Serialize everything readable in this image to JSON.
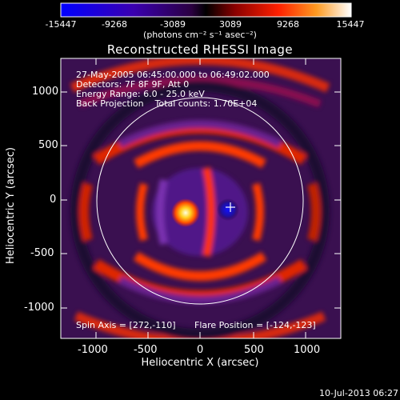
{
  "colorbar": {
    "ticks": [
      "-15447",
      "-9268",
      "-3089",
      "3089",
      "9268",
      "15447"
    ],
    "units_line": "(photons cm⁻² s⁻¹ asec⁻²)"
  },
  "title": "Reconstructed RHESSI Image",
  "info": {
    "line1": "27-May-2005 06:45:00.000 to 06:49:02.000",
    "line2": "Detectors: 7F 8F 9F, Att 0",
    "line3": "Energy Range: 6.0 - 25.0 keV",
    "line4": "Back Projection    Total counts: 1.70E+04"
  },
  "footer_left": "Spin Axis = [272,-110]",
  "footer_right": "Flare Position = [-124,-123]",
  "axes": {
    "xlabel": "Heliocentric X (arcsec)",
    "ylabel": "Heliocentric Y (arcsec)",
    "xticks": [
      "-1000",
      "-500",
      "0",
      "500",
      "1000"
    ],
    "yticks": [
      "1000",
      "500",
      "0",
      "-500",
      "-1000"
    ]
  },
  "timestamp": "10-Jul-2013 06:27"
}
